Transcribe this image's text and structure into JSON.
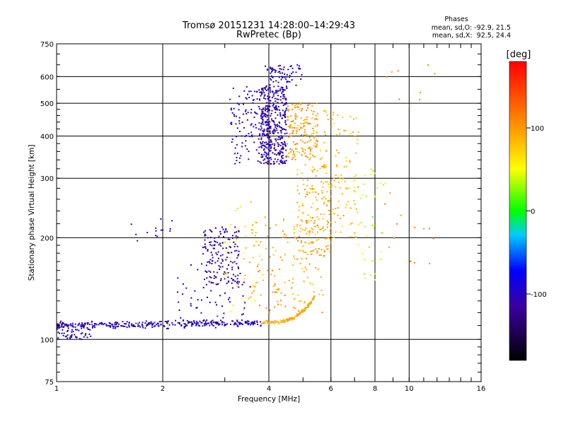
{
  "chart_data": {
    "type": "scatter",
    "title": "Tromsø 20151231 14:28:00–14:29:43",
    "subtitle": "RwPretec (Bp)",
    "xlabel": "Frequency [MHz]",
    "ylabel": "Stationary phase Virtual Height [km]",
    "x_scale": "log",
    "y_scale": "log",
    "xlim": [
      1,
      16
    ],
    "ylim": [
      75,
      750
    ],
    "x_ticks": [
      1,
      2,
      4,
      6,
      8,
      10,
      16
    ],
    "x_tick_labels": [
      "1",
      "2",
      "4",
      "6",
      "8",
      "10",
      "16"
    ],
    "y_ticks": [
      75,
      100,
      200,
      300,
      400,
      500,
      600,
      750
    ],
    "y_tick_labels": [
      "75",
      "100",
      "200",
      "300",
      "400",
      "500",
      "600",
      "750"
    ],
    "grid": true,
    "stats": {
      "heading": "Phases",
      "line_o": "mean, sd,O: -92.9, 21.5",
      "line_x": "mean, sd,X:  92.5, 24.4"
    },
    "colorbar": {
      "label": "[deg]",
      "min": -180,
      "max": 180,
      "ticks": [
        -100,
        0,
        100
      ],
      "tick_labels": [
        "-100",
        "0",
        "100"
      ],
      "placement": "right"
    },
    "clusters": [
      {
        "kind": "trace",
        "x": [
          1.0,
          3.8
        ],
        "y": [
          110,
          112
        ],
        "phase": -110,
        "n": 320,
        "spread": 0.012
      },
      {
        "kind": "curve",
        "x": [
          3.8,
          5.4
        ],
        "y0": 112,
        "k": 22,
        "phase": 95,
        "n": 130
      },
      {
        "kind": "blob",
        "x": [
          1.0,
          1.25
        ],
        "y": [
          100,
          112
        ],
        "phase": -110,
        "n": 60
      },
      {
        "kind": "blob",
        "x": [
          2.6,
          3.3
        ],
        "y": [
          145,
          215
        ],
        "phase": -120,
        "n": 150
      },
      {
        "kind": "blob",
        "x": [
          2.2,
          3.6
        ],
        "y": [
          115,
          170
        ],
        "phase": -105,
        "n": 60
      },
      {
        "kind": "blob",
        "x": [
          3.1,
          3.8
        ],
        "y": [
          330,
          560
        ],
        "phase": -110,
        "n": 110
      },
      {
        "kind": "blob",
        "x": [
          3.8,
          4.5
        ],
        "y": [
          330,
          560
        ],
        "phase": -115,
        "n": 420
      },
      {
        "kind": "blob",
        "x": [
          3.9,
          5.0
        ],
        "y": [
          560,
          650
        ],
        "phase": -110,
        "n": 70
      },
      {
        "kind": "blob",
        "x": [
          4.5,
          5.5
        ],
        "y": [
          340,
          500
        ],
        "phase": 100,
        "n": 160
      },
      {
        "kind": "blob",
        "x": [
          4.8,
          6.0
        ],
        "y": [
          180,
          330
        ],
        "phase": 90,
        "n": 140
      },
      {
        "kind": "blob",
        "x": [
          3.4,
          5.8
        ],
        "y": [
          120,
          230
        ],
        "phase": 95,
        "n": 150
      },
      {
        "kind": "blob",
        "x": [
          5.6,
          7.2
        ],
        "y": [
          200,
          480
        ],
        "phase": 85,
        "n": 120
      },
      {
        "kind": "blob",
        "x": [
          7.0,
          8.6
        ],
        "y": [
          150,
          320
        ],
        "phase": 40,
        "n": 40
      },
      {
        "kind": "blob",
        "x": [
          1.55,
          2.2
        ],
        "y": [
          195,
          230
        ],
        "phase": -100,
        "n": 14
      },
      {
        "kind": "blob",
        "x": [
          3.0,
          3.8
        ],
        "y": [
          120,
          260
        ],
        "phase": 60,
        "n": 30
      },
      {
        "kind": "blob",
        "x": [
          8.5,
          12.0
        ],
        "y": [
          150,
          650
        ],
        "phase": 110,
        "n": 22
      }
    ]
  }
}
